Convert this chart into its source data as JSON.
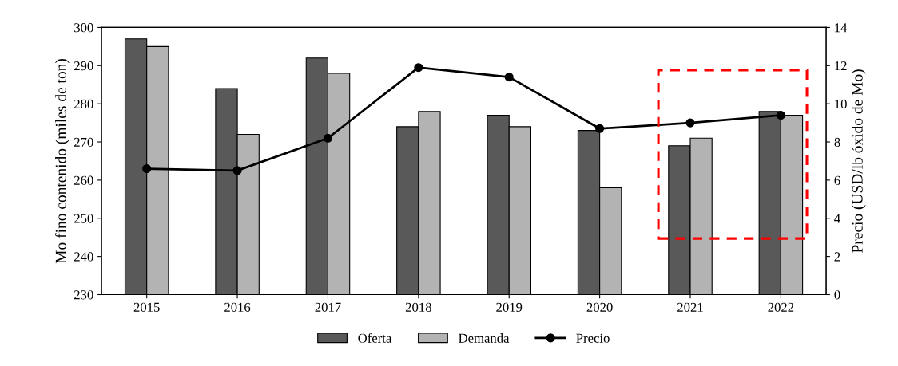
{
  "chart_data": {
    "type": "bar",
    "categories": [
      "2015",
      "2016",
      "2017",
      "2018",
      "2019",
      "2020",
      "2021",
      "2022"
    ],
    "series": [
      {
        "name": "Oferta",
        "color": "#595959",
        "values": [
          297,
          284,
          292,
          274,
          277,
          273,
          269,
          278
        ]
      },
      {
        "name": "Demanda",
        "color": "#b3b3b3",
        "values": [
          295,
          272,
          288,
          278,
          274,
          258,
          271,
          277
        ]
      },
      {
        "name": "Precio",
        "type": "line",
        "axis": "y2",
        "color": "#000000",
        "values": [
          6.6,
          6.5,
          8.2,
          11.9,
          11.4,
          8.7,
          9.0,
          9.4
        ]
      }
    ],
    "ylabel": "Mo fino contenido (miles de ton)",
    "y2label": "Precio (USD/lb óxido de Mo)",
    "ylim": [
      230,
      300
    ],
    "yticks": [
      230,
      240,
      250,
      260,
      270,
      280,
      290,
      300
    ],
    "y2lim": [
      0,
      14
    ],
    "y2ticks": [
      0,
      2,
      4,
      6,
      8,
      10,
      12,
      14
    ],
    "marker": "circle",
    "line_style": "solid",
    "legend": "bottom",
    "grid": false
  }
}
